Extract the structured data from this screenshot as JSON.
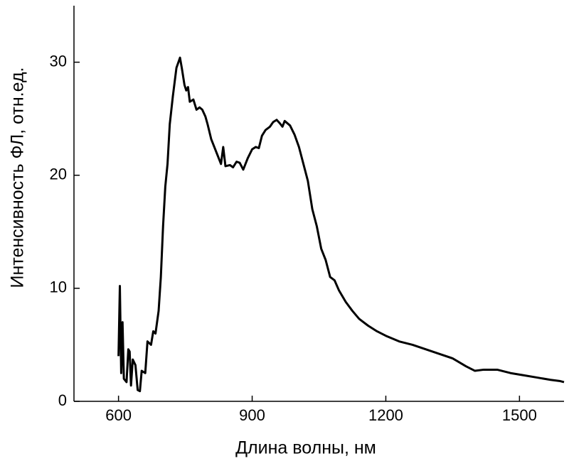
{
  "chart_data": {
    "type": "line",
    "xlabel": "Длина волны, нм",
    "ylabel": "Интенсивность ФЛ, отн.ед.",
    "xlim": [
      500,
      1600
    ],
    "xticks": [
      600,
      900,
      1200,
      1500
    ],
    "ylim": [
      0,
      35
    ],
    "yticks": [
      0,
      10,
      20,
      30
    ],
    "grid": false,
    "series": [
      {
        "color": "#000000",
        "x": [
          600,
          603,
          606,
          609,
          612,
          618,
          622,
          625,
          628,
          632,
          638,
          643,
          648,
          652,
          660,
          665,
          673,
          678,
          683,
          690,
          695,
          700,
          705,
          710,
          715,
          722,
          730,
          738,
          742,
          748,
          752,
          756,
          760,
          768,
          775,
          782,
          788,
          795,
          800,
          808,
          815,
          822,
          830,
          835,
          840,
          850,
          857,
          865,
          872,
          880,
          890,
          900,
          908,
          915,
          922,
          930,
          940,
          947,
          955,
          962,
          968,
          973,
          985,
          995,
          1005,
          1015,
          1025,
          1035,
          1045,
          1055,
          1065,
          1075,
          1085,
          1095,
          1110,
          1125,
          1140,
          1160,
          1180,
          1200,
          1230,
          1260,
          1290,
          1320,
          1350,
          1380,
          1400,
          1420,
          1450,
          1480,
          1510,
          1540,
          1570,
          1590,
          1600
        ],
        "values": [
          4.0,
          10.2,
          2.5,
          7.0,
          2.0,
          1.7,
          4.6,
          4.4,
          1.4,
          3.7,
          3.2,
          1.0,
          0.9,
          2.7,
          2.5,
          5.3,
          5.0,
          6.2,
          6.0,
          8.0,
          11.0,
          15.5,
          19.0,
          21.0,
          24.5,
          27.0,
          29.5,
          30.4,
          29.5,
          28.0,
          27.5,
          27.8,
          26.5,
          26.7,
          25.8,
          26.0,
          25.8,
          25.2,
          24.5,
          23.2,
          22.5,
          21.8,
          21.0,
          22.5,
          20.8,
          20.9,
          20.7,
          21.2,
          21.1,
          20.5,
          21.5,
          22.3,
          22.5,
          22.4,
          23.5,
          24.0,
          24.3,
          24.7,
          24.9,
          24.6,
          24.3,
          24.8,
          24.4,
          23.6,
          22.5,
          21.0,
          19.5,
          17.0,
          15.5,
          13.5,
          12.5,
          11.0,
          10.7,
          9.8,
          8.8,
          8.0,
          7.3,
          6.7,
          6.2,
          5.8,
          5.3,
          5.0,
          4.6,
          4.2,
          3.8,
          3.1,
          2.7,
          2.8,
          2.8,
          2.5,
          2.3,
          2.1,
          1.9,
          1.8,
          1.7
        ]
      }
    ]
  }
}
